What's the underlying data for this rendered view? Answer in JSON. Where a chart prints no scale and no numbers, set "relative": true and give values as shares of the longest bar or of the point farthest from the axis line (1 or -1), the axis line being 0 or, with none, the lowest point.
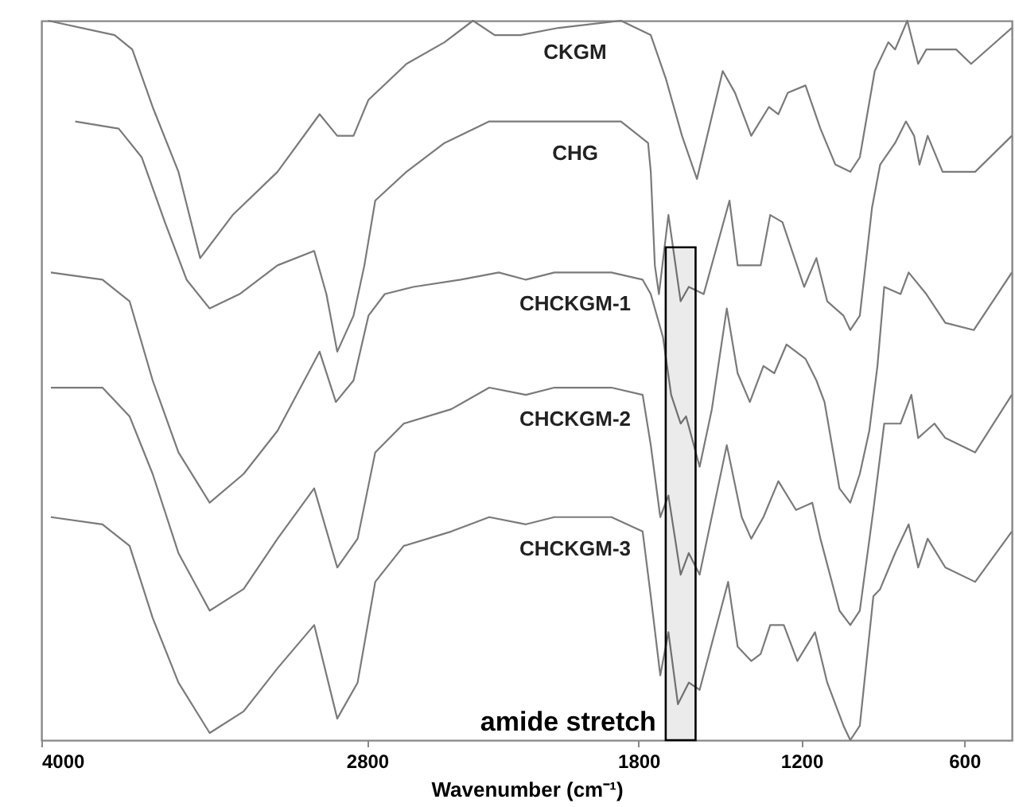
{
  "chart_data": {
    "type": "line",
    "xlabel": "Wavenumber (cm⁻¹)",
    "xlim": [
      4000,
      425
    ],
    "xticks": [
      4000,
      2800,
      1800,
      1200,
      600
    ],
    "relative": true,
    "grid": false,
    "legend": false,
    "marker": "none",
    "line_style": "solid",
    "bands": [
      {
        "axis": "x",
        "from": 1700,
        "to": 1590,
        "label": "amide stretch",
        "color": "#000000"
      }
    ],
    "series": [
      {
        "name": "CKGM",
        "color": "#7a7a7a",
        "x": [
          3975,
          3730,
          3665,
          3590,
          3495,
          3415,
          3295,
          3130,
          2975,
          2910,
          2850,
          2795,
          2655,
          2515,
          2410,
          2330,
          2235,
          2095,
          1865,
          1755,
          1700,
          1640,
          1585,
          1490,
          1445,
          1385,
          1320,
          1285,
          1250,
          1185,
          1130,
          1075,
          1020,
          985,
          930,
          880,
          855,
          810,
          770,
          740,
          630,
          575,
          425
        ],
        "values": [
          1.0,
          0.98,
          0.96,
          0.88,
          0.79,
          0.67,
          0.73,
          0.79,
          0.87,
          0.84,
          0.84,
          0.89,
          0.94,
          0.97,
          1.0,
          0.98,
          0.98,
          0.99,
          1.0,
          0.98,
          0.92,
          0.84,
          0.78,
          0.93,
          0.9,
          0.84,
          0.88,
          0.87,
          0.9,
          0.91,
          0.85,
          0.8,
          0.79,
          0.81,
          0.93,
          0.97,
          0.96,
          1.0,
          0.94,
          0.96,
          0.96,
          0.94,
          0.99
        ]
      },
      {
        "name": "CHG",
        "color": "#7a7a7a",
        "x": [
          3875,
          3715,
          3630,
          3545,
          3465,
          3380,
          3270,
          3130,
          2995,
          2950,
          2910,
          2850,
          2810,
          2770,
          2655,
          2515,
          2350,
          2215,
          2095,
          1865,
          1765,
          1755,
          1740,
          1725,
          1690,
          1645,
          1615,
          1560,
          1465,
          1435,
          1390,
          1350,
          1315,
          1270,
          1190,
          1145,
          1105,
          1045,
          1020,
          985,
          940,
          910,
          855,
          815,
          785,
          765,
          735,
          680,
          560,
          425
        ],
        "values": [
          0.86,
          0.85,
          0.81,
          0.72,
          0.64,
          0.6,
          0.62,
          0.66,
          0.68,
          0.62,
          0.54,
          0.59,
          0.66,
          0.75,
          0.79,
          0.83,
          0.86,
          0.86,
          0.86,
          0.86,
          0.83,
          0.79,
          0.66,
          0.62,
          0.73,
          0.61,
          0.63,
          0.62,
          0.75,
          0.66,
          0.66,
          0.66,
          0.73,
          0.72,
          0.63,
          0.67,
          0.61,
          0.59,
          0.57,
          0.59,
          0.74,
          0.8,
          0.83,
          0.86,
          0.84,
          0.8,
          0.84,
          0.79,
          0.79,
          0.84
        ]
      },
      {
        "name": "CHCKGM-1",
        "color": "#7a7a7a",
        "x": [
          3965,
          3775,
          3675,
          3590,
          3495,
          3380,
          3255,
          3130,
          2975,
          2915,
          2850,
          2795,
          2735,
          2630,
          2455,
          2315,
          2215,
          2110,
          1900,
          1785,
          1755,
          1710,
          1680,
          1645,
          1625,
          1575,
          1530,
          1475,
          1435,
          1390,
          1340,
          1300,
          1255,
          1185,
          1145,
          1115,
          1060,
          1020,
          985,
          950,
          920,
          895,
          835,
          805,
          740,
          670,
          565,
          425
        ],
        "values": [
          0.65,
          0.64,
          0.61,
          0.5,
          0.4,
          0.33,
          0.37,
          0.43,
          0.54,
          0.47,
          0.5,
          0.59,
          0.62,
          0.63,
          0.64,
          0.65,
          0.64,
          0.65,
          0.65,
          0.64,
          0.62,
          0.56,
          0.48,
          0.44,
          0.45,
          0.38,
          0.46,
          0.6,
          0.51,
          0.47,
          0.52,
          0.51,
          0.55,
          0.53,
          0.5,
          0.47,
          0.35,
          0.33,
          0.37,
          0.43,
          0.52,
          0.63,
          0.62,
          0.65,
          0.62,
          0.58,
          0.57,
          0.65
        ]
      },
      {
        "name": "CHCKGM-2",
        "color": "#7a7a7a",
        "x": [
          3965,
          3775,
          3675,
          3590,
          3495,
          3380,
          3255,
          3130,
          2995,
          2910,
          2835,
          2770,
          2665,
          2490,
          2350,
          2215,
          2110,
          1900,
          1785,
          1755,
          1720,
          1690,
          1645,
          1615,
          1575,
          1475,
          1420,
          1385,
          1340,
          1285,
          1220,
          1160,
          1130,
          1060,
          1020,
          985,
          935,
          895,
          835,
          795,
          770,
          740,
          710,
          670,
          560,
          425
        ],
        "values": [
          0.49,
          0.49,
          0.45,
          0.37,
          0.26,
          0.18,
          0.21,
          0.28,
          0.35,
          0.24,
          0.28,
          0.4,
          0.44,
          0.46,
          0.49,
          0.48,
          0.49,
          0.49,
          0.48,
          0.41,
          0.31,
          0.34,
          0.23,
          0.26,
          0.23,
          0.41,
          0.31,
          0.28,
          0.31,
          0.36,
          0.32,
          0.33,
          0.28,
          0.18,
          0.16,
          0.18,
          0.32,
          0.44,
          0.44,
          0.48,
          0.42,
          0.43,
          0.44,
          0.42,
          0.4,
          0.48
        ]
      },
      {
        "name": "CHCKGM-3",
        "color": "#7a7a7a",
        "x": [
          3965,
          3775,
          3675,
          3590,
          3495,
          3380,
          3255,
          3130,
          2995,
          2910,
          2835,
          2770,
          2665,
          2490,
          2350,
          2215,
          2110,
          1900,
          1785,
          1755,
          1720,
          1690,
          1655,
          1615,
          1575,
          1470,
          1435,
          1385,
          1350,
          1315,
          1265,
          1215,
          1150,
          1105,
          1045,
          1020,
          985,
          935,
          910,
          855,
          805,
          770,
          735,
          670,
          560,
          425
        ],
        "values": [
          0.31,
          0.3,
          0.27,
          0.17,
          0.08,
          0.01,
          0.04,
          0.1,
          0.16,
          0.03,
          0.08,
          0.22,
          0.27,
          0.29,
          0.31,
          0.3,
          0.31,
          0.31,
          0.29,
          0.2,
          0.09,
          0.15,
          0.05,
          0.08,
          0.07,
          0.22,
          0.13,
          0.11,
          0.12,
          0.16,
          0.16,
          0.11,
          0.15,
          0.08,
          0.02,
          0.0,
          0.02,
          0.2,
          0.21,
          0.26,
          0.3,
          0.24,
          0.28,
          0.24,
          0.22,
          0.29
        ]
      }
    ]
  }
}
